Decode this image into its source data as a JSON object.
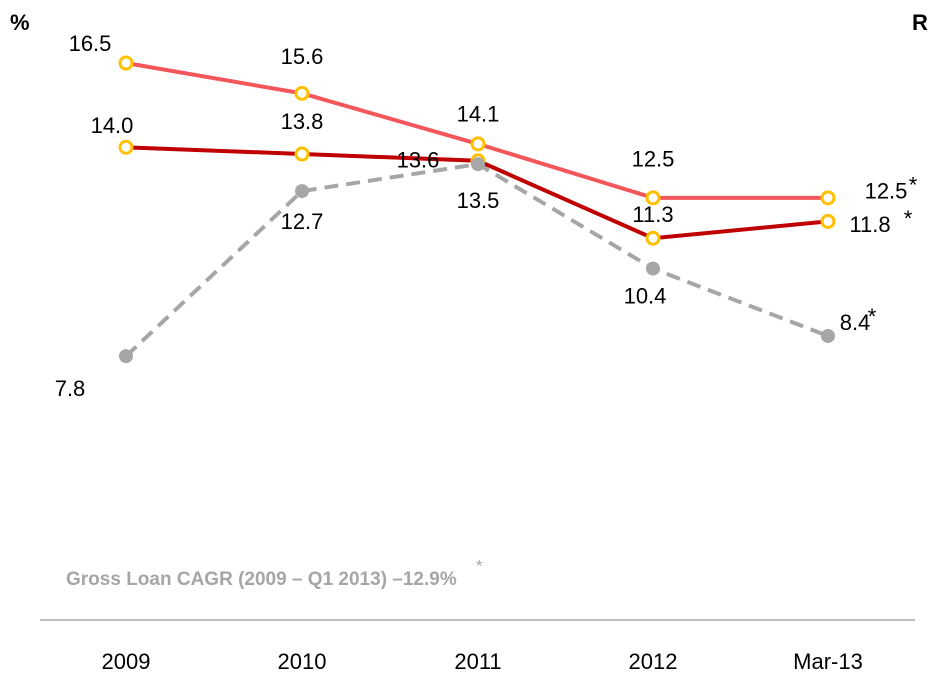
{
  "chart_data": {
    "type": "line",
    "unit_left": "%",
    "unit_right": "R",
    "annotation": "Gross Loan CAGR (2009 – Q1 2013) –12.9%",
    "footnote_mark": "*",
    "categories": [
      "2009",
      "2010",
      "2011",
      "2012",
      "Mar-13"
    ],
    "ylim": [
      0,
      18
    ],
    "series": [
      {
        "color": "#f4575b",
        "marker": "#ffc000",
        "dashed": false,
        "values": [
          16.5,
          15.6,
          14.1,
          12.5,
          12.5
        ],
        "value_labels": [
          "16.5",
          "15.6",
          "14.1",
          "12.5",
          "12.5"
        ]
      },
      {
        "color": "#c00000",
        "marker": "#ffc000",
        "dashed": false,
        "values": [
          14.0,
          13.8,
          13.6,
          11.3,
          11.8
        ],
        "value_labels": [
          "14.0",
          "13.8",
          "13.6",
          "11.3",
          "11.8"
        ]
      },
      {
        "color": "#a6a6a6",
        "marker": "#a6a6a6",
        "dashed": true,
        "values": [
          7.8,
          12.7,
          13.5,
          10.4,
          8.4
        ],
        "value_labels": [
          "7.8",
          "12.7",
          "13.5",
          "10.4",
          "8.4"
        ]
      }
    ]
  }
}
